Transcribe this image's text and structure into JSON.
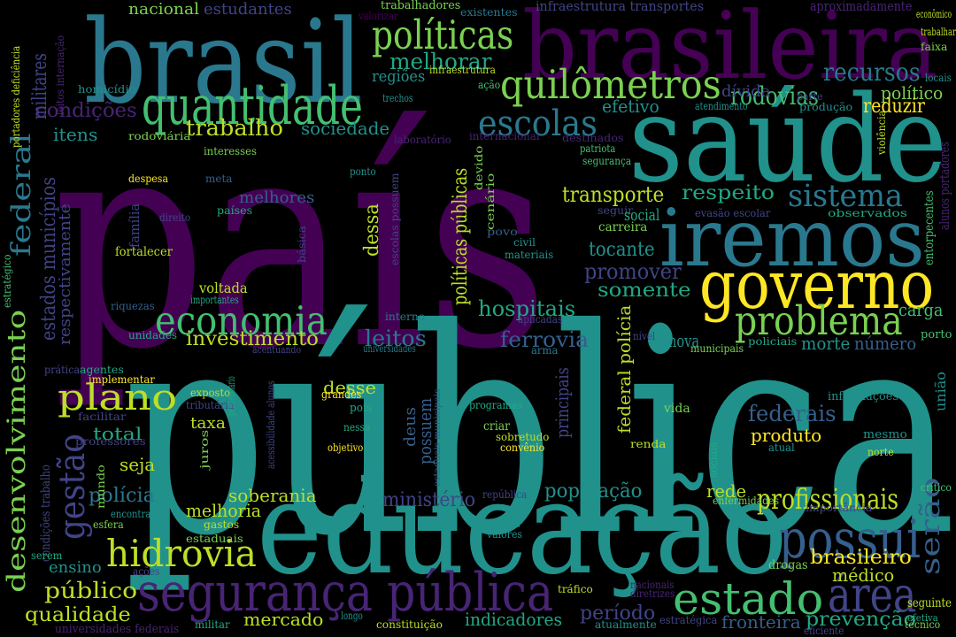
{
  "colors": {
    "background": "#000000",
    "dark_purple": "#440154",
    "purple": "#482475",
    "indigo": "#414487",
    "slate": "#355f8d",
    "blue": "#2a788e",
    "teal": "#21918c",
    "green": "#22a884",
    "emerald": "#44bf70",
    "lime": "#7ad151",
    "yellow_green": "#bddf26",
    "yellow": "#fde725"
  },
  "words": [
    {
      "text": "país",
      "color": "#440154"
    },
    {
      "text": "pública",
      "color": "#21918c"
    },
    {
      "text": "brasileira",
      "color": "#440154"
    },
    {
      "text": "brasil",
      "color": "#2a788e"
    },
    {
      "text": "saúde",
      "color": "#21918c"
    },
    {
      "text": "educação",
      "color": "#21918c"
    },
    {
      "text": "iremos",
      "color": "#2a788e"
    },
    {
      "text": "governo",
      "color": "#fde725"
    },
    {
      "text": "quantidade",
      "color": "#44bf70"
    },
    {
      "text": "segurança pública",
      "color": "#482475"
    },
    {
      "text": "quilômetros",
      "color": "#7ad151"
    },
    {
      "text": "políticas",
      "color": "#7ad151"
    },
    {
      "text": "desenvolvimento",
      "color": "#7ad151"
    },
    {
      "text": "estado",
      "color": "#44bf70"
    },
    {
      "text": "área",
      "color": "#414487"
    },
    {
      "text": "possui",
      "color": "#355f8d"
    },
    {
      "text": "economia",
      "color": "#44bf70"
    },
    {
      "text": "problema",
      "color": "#7ad151"
    },
    {
      "text": "hidrovia",
      "color": "#bddf26"
    },
    {
      "text": "plano",
      "color": "#bddf26"
    },
    {
      "text": "escolas",
      "color": "#2a788e"
    },
    {
      "text": "sistema",
      "color": "#2a788e"
    },
    {
      "text": "federal",
      "color": "#2a788e"
    },
    {
      "text": "gestão",
      "color": "#414487"
    },
    {
      "text": "recursos",
      "color": "#2a788e"
    },
    {
      "text": "rodovias",
      "color": "#44bf70"
    },
    {
      "text": "profissionais",
      "color": "#bddf26"
    },
    {
      "text": "serão",
      "color": "#355f8d"
    },
    {
      "text": "trabalho",
      "color": "#bddf26"
    },
    {
      "text": "melhorar",
      "color": "#22a884"
    },
    {
      "text": "investimento",
      "color": "#bddf26"
    },
    {
      "text": "hospitais",
      "color": "#22a884"
    },
    {
      "text": "leitos",
      "color": "#2a788e"
    },
    {
      "text": "ferrovia",
      "color": "#355f8d"
    },
    {
      "text": "federais",
      "color": "#355f8d"
    },
    {
      "text": "transporte",
      "color": "#bddf26"
    },
    {
      "text": "respeito",
      "color": "#22a884"
    },
    {
      "text": "promover",
      "color": "#414487"
    },
    {
      "text": "tocante",
      "color": "#21918c"
    },
    {
      "text": "somente",
      "color": "#22a884"
    },
    {
      "text": "dessa",
      "color": "#bddf26"
    },
    {
      "text": "políticas públicas",
      "color": "#bddf26"
    },
    {
      "text": "estados municípios",
      "color": "#414487"
    },
    {
      "text": "respectivamente",
      "color": "#414487"
    },
    {
      "text": "condições",
      "color": "#482475"
    },
    {
      "text": "militares",
      "color": "#414487"
    },
    {
      "text": "estudantes",
      "color": "#414487"
    },
    {
      "text": "nacional",
      "color": "#7ad151"
    },
    {
      "text": "sociedade",
      "color": "#21918c"
    },
    {
      "text": "itens",
      "color": "#21918c"
    },
    {
      "text": "regiões",
      "color": "#21918c"
    },
    {
      "text": "dívida",
      "color": "#414487"
    },
    {
      "text": "efetivo",
      "color": "#21918c"
    },
    {
      "text": "político",
      "color": "#7ad151"
    },
    {
      "text": "reduzir",
      "color": "#fde725"
    },
    {
      "text": "carga",
      "color": "#44bf70"
    },
    {
      "text": "morte",
      "color": "#21918c"
    },
    {
      "text": "número",
      "color": "#355f8d"
    },
    {
      "text": "nova",
      "color": "#21918c"
    },
    {
      "text": "desse",
      "color": "#bddf26"
    },
    {
      "text": "principais",
      "color": "#414487"
    },
    {
      "text": "federal polícia",
      "color": "#bddf26"
    },
    {
      "text": "produto",
      "color": "#fde725"
    },
    {
      "text": "brasileiro",
      "color": "#fde725"
    },
    {
      "text": "médico",
      "color": "#bddf26"
    },
    {
      "text": "população",
      "color": "#21918c"
    },
    {
      "text": "rede",
      "color": "#bddf26"
    },
    {
      "text": "ministério",
      "color": "#414487"
    },
    {
      "text": "soberania",
      "color": "#bddf26"
    },
    {
      "text": "melhoria",
      "color": "#bddf26"
    },
    {
      "text": "polícia",
      "color": "#2a788e"
    },
    {
      "text": "seja",
      "color": "#bddf26"
    },
    {
      "text": "total",
      "color": "#22a884"
    },
    {
      "text": "taxa",
      "color": "#bddf26"
    },
    {
      "text": "ensino",
      "color": "#21918c"
    },
    {
      "text": "público",
      "color": "#bddf26"
    },
    {
      "text": "qualidade",
      "color": "#bddf26"
    },
    {
      "text": "mercado",
      "color": "#bddf26"
    },
    {
      "text": "indicadores",
      "color": "#22a884"
    },
    {
      "text": "período",
      "color": "#414487"
    },
    {
      "text": "fronteira",
      "color": "#355f8d"
    },
    {
      "text": "prevenção",
      "color": "#22a884"
    },
    {
      "text": "união",
      "color": "#21918c"
    },
    {
      "text": "deus",
      "color": "#355f8d"
    },
    {
      "text": "possuem",
      "color": "#355f8d"
    },
    {
      "text": "infraestrutura transportes",
      "color": "#414487"
    },
    {
      "text": "aproximadamente",
      "color": "#482475"
    },
    {
      "text": "trabalhadores",
      "color": "#7ad151"
    },
    {
      "text": "existentes",
      "color": "#2a788e"
    },
    {
      "text": "valorizar",
      "color": "#440154"
    },
    {
      "text": "econômico",
      "color": "#bddf26"
    },
    {
      "text": "trabalhar",
      "color": "#bddf26"
    },
    {
      "text": "faixa",
      "color": "#7ad151"
    },
    {
      "text": "locais",
      "color": "#21918c"
    },
    {
      "text": "alunos portadores",
      "color": "#482475"
    },
    {
      "text": "entorpecentes",
      "color": "#44bf70"
    },
    {
      "text": "violência",
      "color": "#bddf26"
    },
    {
      "text": "observados",
      "color": "#22a884"
    },
    {
      "text": "evasão escolar",
      "color": "#414487"
    },
    {
      "text": "portadores deficiência",
      "color": "#bddf26"
    },
    {
      "text": "leitos internação",
      "color": "#482475"
    },
    {
      "text": "homicídio",
      "color": "#21918c"
    },
    {
      "text": "infraestrutura",
      "color": "#bddf26"
    },
    {
      "text": "trechos",
      "color": "#21918c"
    },
    {
      "text": "ação",
      "color": "#44bf70"
    },
    {
      "text": "rodoviária",
      "color": "#7ad151"
    },
    {
      "text": "laboratório",
      "color": "#482475"
    },
    {
      "text": "internacional",
      "color": "#482475"
    },
    {
      "text": "destinados",
      "color": "#482475"
    },
    {
      "text": "patriota",
      "color": "#44bf70"
    },
    {
      "text": "segurança",
      "color": "#44bf70"
    },
    {
      "text": "interesses",
      "color": "#7ad151"
    },
    {
      "text": "ponto",
      "color": "#21918c"
    },
    {
      "text": "despesa",
      "color": "#fde725"
    },
    {
      "text": "meta",
      "color": "#355f8d"
    },
    {
      "text": "melhores",
      "color": "#355f8d"
    },
    {
      "text": "família",
      "color": "#414487"
    },
    {
      "text": "direito",
      "color": "#414487"
    },
    {
      "text": "países",
      "color": "#22a884"
    },
    {
      "text": "básica",
      "color": "#414487"
    },
    {
      "text": "escolas possuem",
      "color": "#414487"
    },
    {
      "text": "cenário",
      "color": "#7ad151"
    },
    {
      "text": "devido",
      "color": "#7ad151"
    },
    {
      "text": "seguir",
      "color": "#414487"
    },
    {
      "text": "carreira",
      "color": "#7ad151"
    },
    {
      "text": "social",
      "color": "#22a884"
    },
    {
      "text": "povo",
      "color": "#355f8d"
    },
    {
      "text": "civil",
      "color": "#21918c"
    },
    {
      "text": "materiais",
      "color": "#21918c"
    },
    {
      "text": "fortalecer",
      "color": "#bddf26"
    },
    {
      "text": "estratégico",
      "color": "#44bf70"
    },
    {
      "text": "voltada",
      "color": "#bddf26"
    },
    {
      "text": "importantes",
      "color": "#22a884"
    },
    {
      "text": "riquezas",
      "color": "#355f8d"
    },
    {
      "text": "interno",
      "color": "#2a788e"
    },
    {
      "text": "aplicadas",
      "color": "#414487"
    },
    {
      "text": "unidades",
      "color": "#22a884"
    },
    {
      "text": "acentuando",
      "color": "#414487"
    },
    {
      "text": "universidades",
      "color": "#2a788e"
    },
    {
      "text": "arma",
      "color": "#2a788e"
    },
    {
      "text": "nível",
      "color": "#414487"
    },
    {
      "text": "municipais",
      "color": "#7ad151"
    },
    {
      "text": "policiais",
      "color": "#22a884"
    },
    {
      "text": "porto",
      "color": "#44bf70"
    },
    {
      "text": "prática",
      "color": "#414487"
    },
    {
      "text": "agentes",
      "color": "#22a884"
    },
    {
      "text": "implementar",
      "color": "#fde725"
    },
    {
      "text": "exposto",
      "color": "#bddf26"
    },
    {
      "text": "tributária",
      "color": "#414487"
    },
    {
      "text": "juros",
      "color": "#7ad151"
    },
    {
      "text": "penitenciário",
      "color": "#22a884"
    },
    {
      "text": "acessibilidade alunos",
      "color": "#414487"
    },
    {
      "text": "estaduais municipais",
      "color": "#355f8d"
    },
    {
      "text": "pois",
      "color": "#22a884"
    },
    {
      "text": "grandes",
      "color": "#fde725"
    },
    {
      "text": "nessa",
      "color": "#22a884"
    },
    {
      "text": "programas",
      "color": "#22a884"
    },
    {
      "text": "criar",
      "color": "#7ad151"
    },
    {
      "text": "sobretudo",
      "color": "#bddf26"
    },
    {
      "text": "convênio",
      "color": "#fde725"
    },
    {
      "text": "objetivo",
      "color": "#fde725"
    },
    {
      "text": "vida",
      "color": "#7ad151"
    },
    {
      "text": "renda",
      "color": "#bddf26"
    },
    {
      "text": "informações",
      "color": "#21918c"
    },
    {
      "text": "mesmo",
      "color": "#21918c"
    },
    {
      "text": "atual",
      "color": "#21918c"
    },
    {
      "text": "norte",
      "color": "#bddf26"
    },
    {
      "text": "crítico",
      "color": "#44bf70"
    },
    {
      "text": "condições trabalho",
      "color": "#414487"
    },
    {
      "text": "facilitar",
      "color": "#414487"
    },
    {
      "text": "professores",
      "color": "#414487"
    },
    {
      "text": "mundo",
      "color": "#7ad151"
    },
    {
      "text": "encontra",
      "color": "#21918c"
    },
    {
      "text": "esfera",
      "color": "#7ad151"
    },
    {
      "text": "gastos",
      "color": "#bddf26"
    },
    {
      "text": "estaduais",
      "color": "#7ad151"
    },
    {
      "text": "república",
      "color": "#414487"
    },
    {
      "text": "sociais",
      "color": "#22a884"
    },
    {
      "text": "enfermidades",
      "color": "#7ad151"
    },
    {
      "text": "importância",
      "color": "#414487"
    },
    {
      "text": "serem",
      "color": "#22a884"
    },
    {
      "text": "ações",
      "color": "#414487"
    },
    {
      "text": "valores",
      "color": "#21918c"
    },
    {
      "text": "drogas",
      "color": "#7ad151"
    },
    {
      "text": "tráfico",
      "color": "#bddf26"
    },
    {
      "text": "nacionais",
      "color": "#482475"
    },
    {
      "text": "diretrizes",
      "color": "#482475"
    },
    {
      "text": "longo",
      "color": "#21918c"
    },
    {
      "text": "militar",
      "color": "#22a884"
    },
    {
      "text": "universidades federais",
      "color": "#482475"
    },
    {
      "text": "constituição",
      "color": "#bddf26"
    },
    {
      "text": "atualmente",
      "color": "#21918c"
    },
    {
      "text": "estratégica",
      "color": "#414487"
    },
    {
      "text": "eficiente",
      "color": "#414487"
    },
    {
      "text": "seguinte",
      "color": "#bddf26"
    },
    {
      "text": "efetiva",
      "color": "#22a884"
    },
    {
      "text": "técnico",
      "color": "#7ad151"
    },
    {
      "text": "atendimento",
      "color": "#21918c"
    },
    {
      "text": "parte",
      "color": "#414487"
    },
    {
      "text": "produção",
      "color": "#21918c"
    }
  ]
}
